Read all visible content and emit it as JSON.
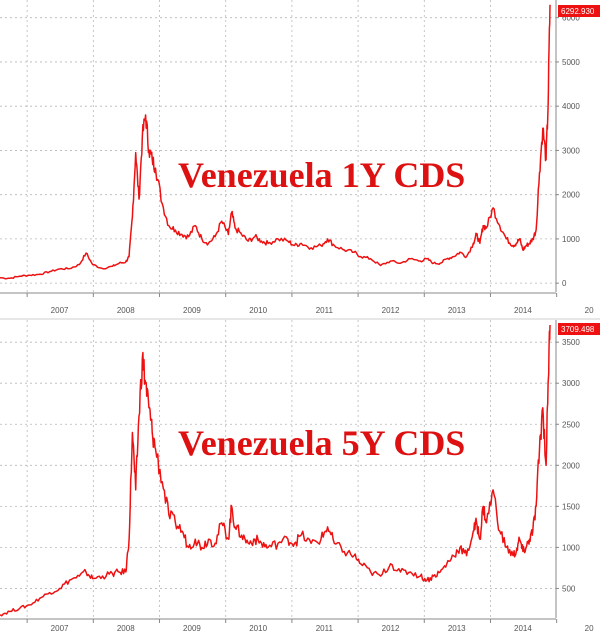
{
  "colors": {
    "series": "#ee1111",
    "grid": "#b8b8b8",
    "axis": "#888888",
    "tick_text": "#555555",
    "label": "#dd1111"
  },
  "chart_data": [
    {
      "type": "line",
      "title": "Venezuela 1Y CDS",
      "xlabel": "",
      "ylabel": "",
      "x_ticks": [
        "2007",
        "2008",
        "2009",
        "2010",
        "2011",
        "2012",
        "2013",
        "2014",
        "20"
      ],
      "y_ticks": [
        "0",
        "1000",
        "2000",
        "3000",
        "4000",
        "5000",
        "6000"
      ],
      "ylim": [
        -200,
        6400
      ],
      "xlim": [
        2006.55,
        2014.95
      ],
      "grid": true,
      "last_value_label": "6292.930",
      "series": [
        {
          "x": [
            2006.55,
            2006.7,
            2006.85,
            2007.0,
            2007.15,
            2007.3,
            2007.45,
            2007.6,
            2007.75,
            2007.85,
            2007.95,
            2008.1,
            2008.25,
            2008.35,
            2008.45,
            2008.5,
            2008.55,
            2008.6,
            2008.65,
            2008.7,
            2008.75,
            2008.8,
            2008.85,
            2008.9,
            2009.0,
            2009.1,
            2009.2,
            2009.3,
            2009.4,
            2009.5,
            2009.6,
            2009.7,
            2009.8,
            2009.9,
            2010.0,
            2010.05,
            2010.1,
            2010.2,
            2010.3,
            2010.4,
            2010.5,
            2010.6,
            2010.75,
            2010.9,
            2011.0,
            2011.1,
            2011.25,
            2011.4,
            2011.5,
            2011.6,
            2011.75,
            2011.9,
            2012.0,
            2012.15,
            2012.3,
            2012.45,
            2012.6,
            2012.75,
            2012.9,
            2013.0,
            2013.1,
            2013.2,
            2013.3,
            2013.4,
            2013.5,
            2013.6,
            2013.7,
            2013.75,
            2013.8,
            2013.85,
            2013.9,
            2014.0,
            2014.1,
            2014.2,
            2014.3,
            2014.35,
            2014.4,
            2014.45,
            2014.5,
            2014.55,
            2014.6,
            2014.65,
            2014.7,
            2014.75,
            2014.8,
            2014.83,
            2014.86
          ],
          "y": [
            120,
            110,
            160,
            180,
            200,
            260,
            320,
            330,
            420,
            680,
            420,
            330,
            380,
            450,
            480,
            600,
            1500,
            2950,
            1900,
            3300,
            3800,
            3000,
            2800,
            2600,
            1800,
            1300,
            1200,
            1100,
            1050,
            1300,
            1000,
            900,
            1050,
            1400,
            1100,
            1600,
            1250,
            1100,
            950,
            1050,
            950,
            900,
            1000,
            950,
            850,
            900,
            800,
            850,
            1000,
            850,
            750,
            700,
            600,
            550,
            400,
            500,
            450,
            550,
            500,
            550,
            450,
            450,
            550,
            600,
            700,
            600,
            900,
            1100,
            900,
            1300,
            1250,
            1700,
            1300,
            1000,
            850,
            900,
            1000,
            750,
            850,
            900,
            1000,
            1200,
            2500,
            3500,
            2800,
            4000,
            6292.93
          ]
        }
      ]
    },
    {
      "type": "line",
      "title": "Venezuela 5Y CDS",
      "xlabel": "",
      "ylabel": "",
      "x_ticks": [
        "2007",
        "2008",
        "2009",
        "2010",
        "2011",
        "2012",
        "2013",
        "2014",
        "20"
      ],
      "y_ticks": [
        "500",
        "1000",
        "1500",
        "2000",
        "2500",
        "3000",
        "3500"
      ],
      "ylim": [
        140,
        3770
      ],
      "xlim": [
        2006.55,
        2014.95
      ],
      "grid": true,
      "last_value_label": "3709.498",
      "series": [
        {
          "x": [
            2006.55,
            2006.7,
            2006.85,
            2007.0,
            2007.15,
            2007.3,
            2007.45,
            2007.6,
            2007.75,
            2007.85,
            2007.95,
            2008.1,
            2008.25,
            2008.35,
            2008.45,
            2008.5,
            2008.55,
            2008.6,
            2008.65,
            2008.7,
            2008.75,
            2008.8,
            2008.85,
            2008.9,
            2009.0,
            2009.1,
            2009.2,
            2009.3,
            2009.4,
            2009.5,
            2009.6,
            2009.7,
            2009.8,
            2009.9,
            2010.0,
            2010.05,
            2010.1,
            2010.2,
            2010.3,
            2010.4,
            2010.5,
            2010.6,
            2010.75,
            2010.9,
            2011.0,
            2011.1,
            2011.25,
            2011.4,
            2011.5,
            2011.6,
            2011.75,
            2011.9,
            2012.0,
            2012.15,
            2012.3,
            2012.45,
            2012.6,
            2012.75,
            2012.9,
            2013.0,
            2013.1,
            2013.2,
            2013.3,
            2013.4,
            2013.5,
            2013.6,
            2013.7,
            2013.75,
            2013.8,
            2013.85,
            2013.9,
            2014.0,
            2014.1,
            2014.2,
            2014.3,
            2014.35,
            2014.4,
            2014.45,
            2014.5,
            2014.55,
            2014.6,
            2014.65,
            2014.7,
            2014.75,
            2014.8,
            2014.83,
            2014.86
          ],
          "y": [
            180,
            220,
            260,
            300,
            380,
            450,
            500,
            600,
            650,
            700,
            620,
            650,
            680,
            700,
            700,
            1100,
            2400,
            1700,
            2600,
            3300,
            3000,
            2700,
            2400,
            2200,
            1800,
            1400,
            1300,
            1200,
            1000,
            1100,
            1000,
            1100,
            1050,
            1300,
            1100,
            1500,
            1250,
            1150,
            1050,
            1100,
            1050,
            1000,
            1050,
            1100,
            1050,
            1150,
            1050,
            1100,
            1250,
            1050,
            950,
            900,
            800,
            700,
            650,
            800,
            700,
            700,
            650,
            600,
            650,
            700,
            800,
            900,
            1000,
            900,
            1200,
            1300,
            1100,
            1500,
            1300,
            1700,
            1200,
            1000,
            900,
            950,
            1100,
            950,
            1000,
            1100,
            1200,
            1500,
            2200,
            2700,
            2000,
            3000,
            3709.498
          ]
        }
      ]
    }
  ]
}
